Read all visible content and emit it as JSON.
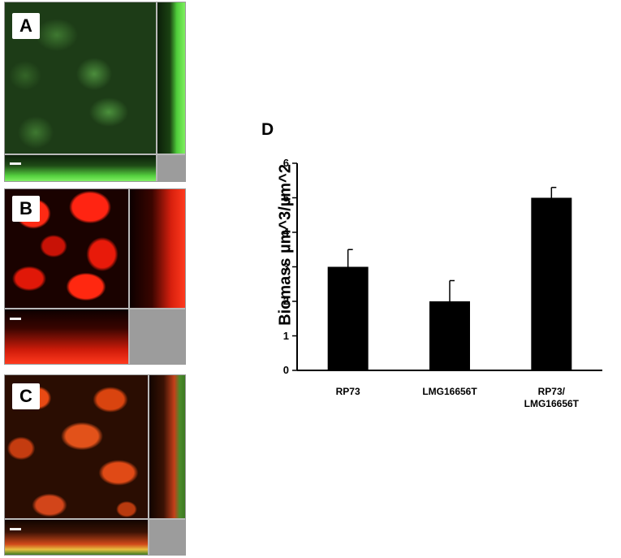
{
  "panels": {
    "a": {
      "label": "A"
    },
    "b": {
      "label": "B"
    },
    "c": {
      "label": "C"
    }
  },
  "chart_data": {
    "panel_label": "D",
    "type": "bar",
    "title": "",
    "xlabel": "",
    "ylabel": "Biomass µm^3/µm^2",
    "categories": [
      "RP73",
      "LMG16656T",
      "RP73/\nLMG16656T"
    ],
    "values": [
      3.0,
      2.0,
      5.0
    ],
    "error": [
      0.5,
      0.6,
      0.3
    ],
    "ylim": [
      0,
      6
    ],
    "yticks": [
      0,
      1,
      2,
      3,
      4,
      5,
      6
    ],
    "grid": false,
    "bar_color": "#000000"
  }
}
